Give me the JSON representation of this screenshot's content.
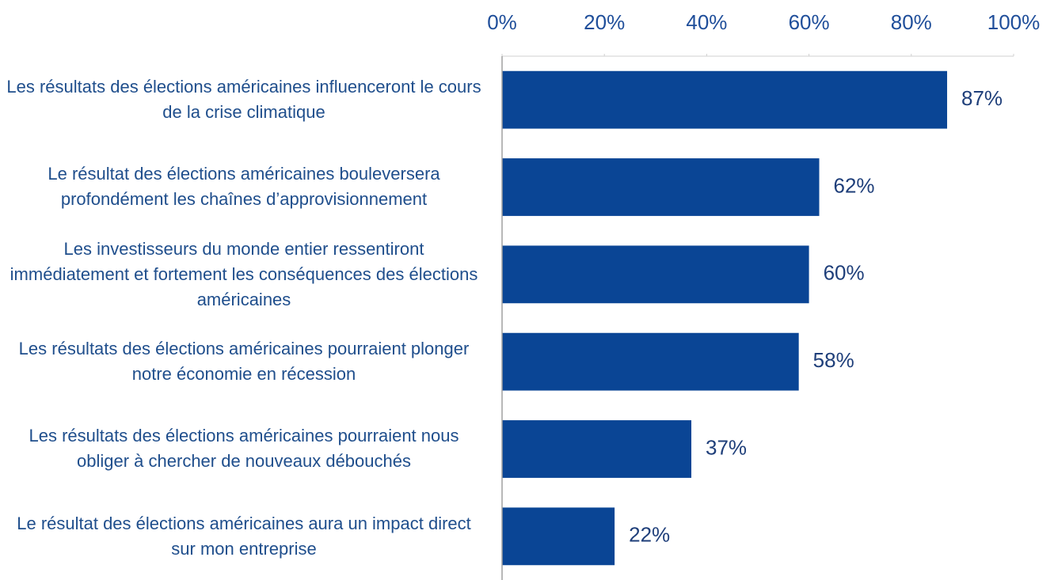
{
  "chart_data": {
    "type": "barh",
    "categories": [
      "Les résultats des élections américaines influenceront le cours de la crise climatique",
      "Le résultat des élections américaines bouleversera profondément les chaînes d’approvisionnement",
      "Les investisseurs du monde entier ressentiront immédiatement et fortement les conséquences des élections américaines",
      "Les résultats des élections américaines pourraient plonger notre économie en récession",
      "Les résultats des élections américaines pourraient nous obliger à chercher de nouveaux débouchés",
      "Le résultat des élections américaines aura un impact direct sur mon entreprise"
    ],
    "values": [
      87,
      62,
      60,
      58,
      37,
      22
    ],
    "value_labels": [
      "87%",
      "62%",
      "60%",
      "58%",
      "37%",
      "22%"
    ],
    "color": "#0a4595",
    "xlim": [
      0,
      100
    ],
    "xticks": [
      {
        "value": 0,
        "label": "0%"
      },
      {
        "value": 20,
        "label": "20%"
      },
      {
        "value": 40,
        "label": "40%"
      },
      {
        "value": 60,
        "label": "60%"
      },
      {
        "value": 80,
        "label": "80%"
      },
      {
        "value": 100,
        "label": "100%"
      }
    ]
  }
}
